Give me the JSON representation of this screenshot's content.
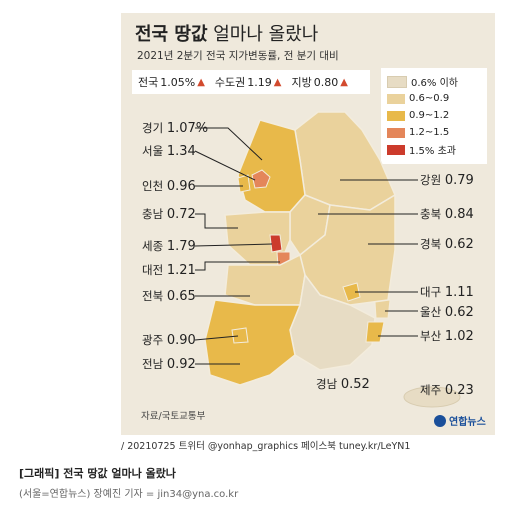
{
  "title_bold": "전국 땅값",
  "title_rest": "얼마나 올랐나",
  "subtitle": "2021년 2분기 전국 지가변동률, 전 분기 대비",
  "summary": [
    {
      "label": "전국",
      "value": "1.05%"
    },
    {
      "label": "수도권",
      "value": "1.19"
    },
    {
      "label": "지방",
      "value": "0.80"
    }
  ],
  "legend": [
    {
      "label": "0.6% 이하",
      "color": "#e7dcc4"
    },
    {
      "label": "0.6~0.9",
      "color": "#ead29c"
    },
    {
      "label": "0.9~1.2",
      "color": "#e8b94a"
    },
    {
      "label": "1.2~1.5",
      "color": "#e4865a"
    },
    {
      "label": "1.5% 초과",
      "color": "#cc3b2c"
    }
  ],
  "regions": [
    {
      "name": "경기",
      "value": "1.07%"
    },
    {
      "name": "서울",
      "value": "1.34"
    },
    {
      "name": "인천",
      "value": "0.96"
    },
    {
      "name": "충남",
      "value": "0.72"
    },
    {
      "name": "세종",
      "value": "1.79"
    },
    {
      "name": "대전",
      "value": "1.21"
    },
    {
      "name": "전북",
      "value": "0.65"
    },
    {
      "name": "광주",
      "value": "0.90"
    },
    {
      "name": "전남",
      "value": "0.92"
    },
    {
      "name": "강원",
      "value": "0.79"
    },
    {
      "name": "충북",
      "value": "0.84"
    },
    {
      "name": "경북",
      "value": "0.62"
    },
    {
      "name": "대구",
      "value": "1.11"
    },
    {
      "name": "울산",
      "value": "0.62"
    },
    {
      "name": "부산",
      "value": "1.02"
    },
    {
      "name": "경남",
      "value": "0.52"
    },
    {
      "name": "제주",
      "value": "0.23"
    }
  ],
  "source": "자료/국토교통부",
  "logo": "연합뉴스",
  "credit": "/ 20210725 트위터 @yonhap_graphics  페이스북 tuney.kr/LeYN1",
  "caption": "[그래픽] 전국 땅값 얼마나 올랐나",
  "byline": "(서울=연합뉴스) 장예진 기자 = jin34@yna.co.kr"
}
